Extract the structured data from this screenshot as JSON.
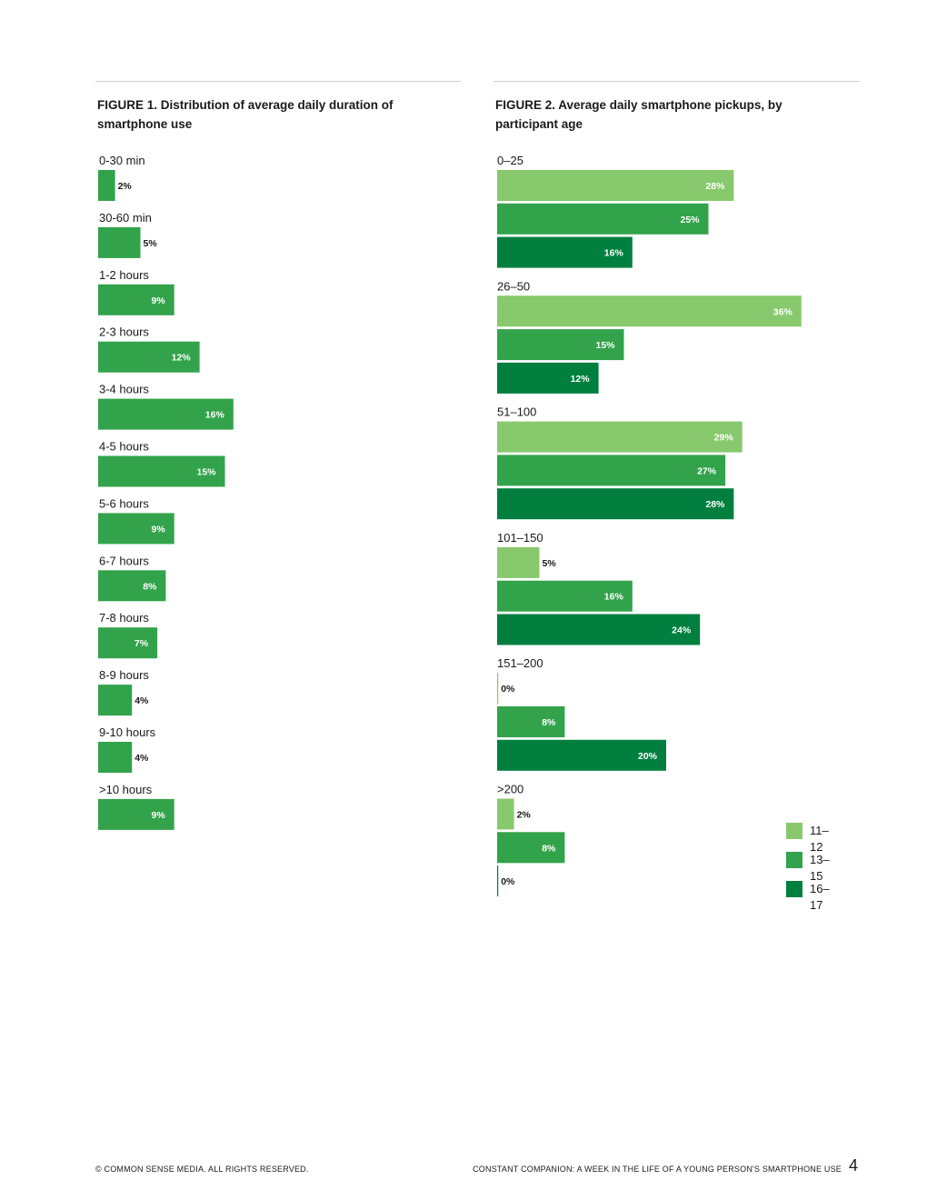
{
  "figure1": {
    "title_line1": "FIGURE 1. Distribution of average daily duration of",
    "title_line2": "smartphone use"
  },
  "figure2": {
    "title_line1": "FIGURE 2. Average daily smartphone pickups, by",
    "title_line2": "participant age"
  },
  "footer": {
    "left": "© COMMON SENSE MEDIA. ALL RIGHTS RESERVED.",
    "right": "CONSTANT COMPANION: A WEEK IN THE LIFE OF A YOUNG PERSON'S SMARTPHONE USE",
    "page_number": "4"
  },
  "colors": {
    "bar_medium": "#32a34b",
    "age_11_12": "#88c96d",
    "age_13_15": "#32a34b",
    "age_16_17": "#007f3f"
  },
  "chart_data": [
    {
      "type": "bar",
      "orientation": "horizontal",
      "title": "FIGURE 1. Distribution of average daily duration of smartphone use",
      "categories": [
        "0-30 min",
        "30-60 min",
        "1-2 hours",
        "2-3 hours",
        "3-4 hours",
        "4-5 hours",
        "5-6 hours",
        "6-7 hours",
        "7-8 hours",
        "8-9 hours",
        "9-10 hours",
        ">10 hours"
      ],
      "values": [
        2,
        5,
        9,
        12,
        16,
        15,
        9,
        8,
        7,
        4,
        4,
        9
      ],
      "value_labels": [
        "2%",
        "5%",
        "9%",
        "12%",
        "16%",
        "15%",
        "9%",
        "8%",
        "7%",
        "4%",
        "4%",
        "9%"
      ],
      "unit": "%",
      "xlim": [
        0,
        36
      ]
    },
    {
      "type": "bar",
      "orientation": "horizontal",
      "title": "FIGURE 2. Average daily smartphone pickups, by participant age",
      "categories": [
        "0–25",
        "26–50",
        "51–100",
        "101–150",
        "151–200",
        ">200"
      ],
      "series": [
        {
          "name": "11–12",
          "values": [
            28,
            36,
            29,
            5,
            0,
            2
          ],
          "value_labels": [
            "28%",
            "36%",
            "29%",
            "5%",
            "0%",
            "2%"
          ]
        },
        {
          "name": "13–15",
          "values": [
            25,
            15,
            27,
            16,
            8,
            8
          ],
          "value_labels": [
            "25%",
            "15%",
            "27%",
            "16%",
            "8%",
            "8%"
          ]
        },
        {
          "name": "16–17",
          "values": [
            16,
            12,
            28,
            24,
            20,
            0
          ],
          "value_labels": [
            "16%",
            "12%",
            "28%",
            "24%",
            "20%",
            "0%"
          ]
        }
      ],
      "unit": "%",
      "xlim": [
        0,
        36
      ],
      "legend_position": "bottom-right"
    }
  ]
}
